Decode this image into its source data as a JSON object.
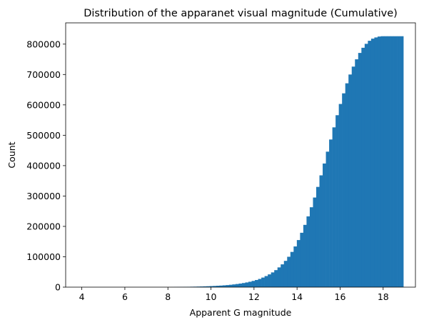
{
  "chart_data": {
    "type": "bar",
    "title": "Distribution of the apparanet visual magnitude (Cumulative)",
    "xlabel": "Apparent G magnitude",
    "ylabel": "Count",
    "xlim": [
      3.25,
      19.5
    ],
    "ylim": [
      0,
      870000
    ],
    "xticks": [
      4,
      6,
      8,
      10,
      12,
      14,
      16,
      18
    ],
    "yticks": [
      0,
      100000,
      200000,
      300000,
      400000,
      500000,
      600000,
      700000,
      800000
    ],
    "bar_color": "#1f77b4",
    "cumulative": true,
    "bin_edges": [
      3.79,
      3.94,
      4.09,
      4.24,
      4.39,
      4.54,
      4.69,
      4.84,
      4.99,
      5.14,
      5.29,
      5.44,
      5.59,
      5.74,
      5.89,
      6.04,
      6.19,
      6.34,
      6.49,
      6.64,
      6.79,
      6.94,
      7.09,
      7.24,
      7.39,
      7.54,
      7.69,
      7.84,
      7.99,
      8.14,
      8.29,
      8.44,
      8.59,
      8.74,
      8.89,
      9.04,
      9.19,
      9.34,
      9.49,
      9.64,
      9.79,
      9.94,
      10.09,
      10.24,
      10.39,
      10.54,
      10.69,
      10.84,
      10.99,
      11.14,
      11.29,
      11.44,
      11.59,
      11.74,
      11.89,
      12.04,
      12.19,
      12.34,
      12.49,
      12.64,
      12.79,
      12.94,
      13.09,
      13.24,
      13.39,
      13.54,
      13.69,
      13.84,
      13.99,
      14.14,
      14.29,
      14.44,
      14.59,
      14.74,
      14.89,
      15.04,
      15.19,
      15.34,
      15.49,
      15.64,
      15.79,
      15.94,
      16.09,
      16.24,
      16.39,
      16.54,
      16.69,
      16.84,
      16.99,
      17.14,
      17.29,
      17.44,
      17.59,
      17.74,
      17.89,
      18.04,
      18.19,
      18.34,
      18.49,
      18.64,
      18.79,
      18.94
    ],
    "values": [
      0,
      0,
      0,
      0,
      0,
      0,
      0,
      0,
      0,
      0,
      0,
      0,
      0,
      0,
      0,
      0,
      0,
      0,
      0,
      0,
      0,
      0,
      0,
      0,
      0,
      0,
      0,
      0,
      100,
      200,
      400,
      600,
      800,
      1000,
      1200,
      1400,
      1600,
      1900,
      2200,
      2600,
      3000,
      3500,
      4000,
      4600,
      5200,
      6000,
      6800,
      7800,
      9000,
      10300,
      11800,
      13500,
      15500,
      17800,
      20500,
      23500,
      27000,
      31500,
      36500,
      42000,
      48500,
      56000,
      65000,
      75000,
      86500,
      100000,
      116000,
      134000,
      155000,
      179000,
      205000,
      233000,
      263000,
      295000,
      330000,
      368000,
      407000,
      446000,
      486000,
      526000,
      566000,
      603000,
      638000,
      671000,
      700000,
      726000,
      750000,
      771000,
      788000,
      801000,
      811000,
      818000,
      822000,
      825000,
      826000,
      826000,
      826000,
      826000,
      826000,
      826000,
      826000
    ]
  }
}
